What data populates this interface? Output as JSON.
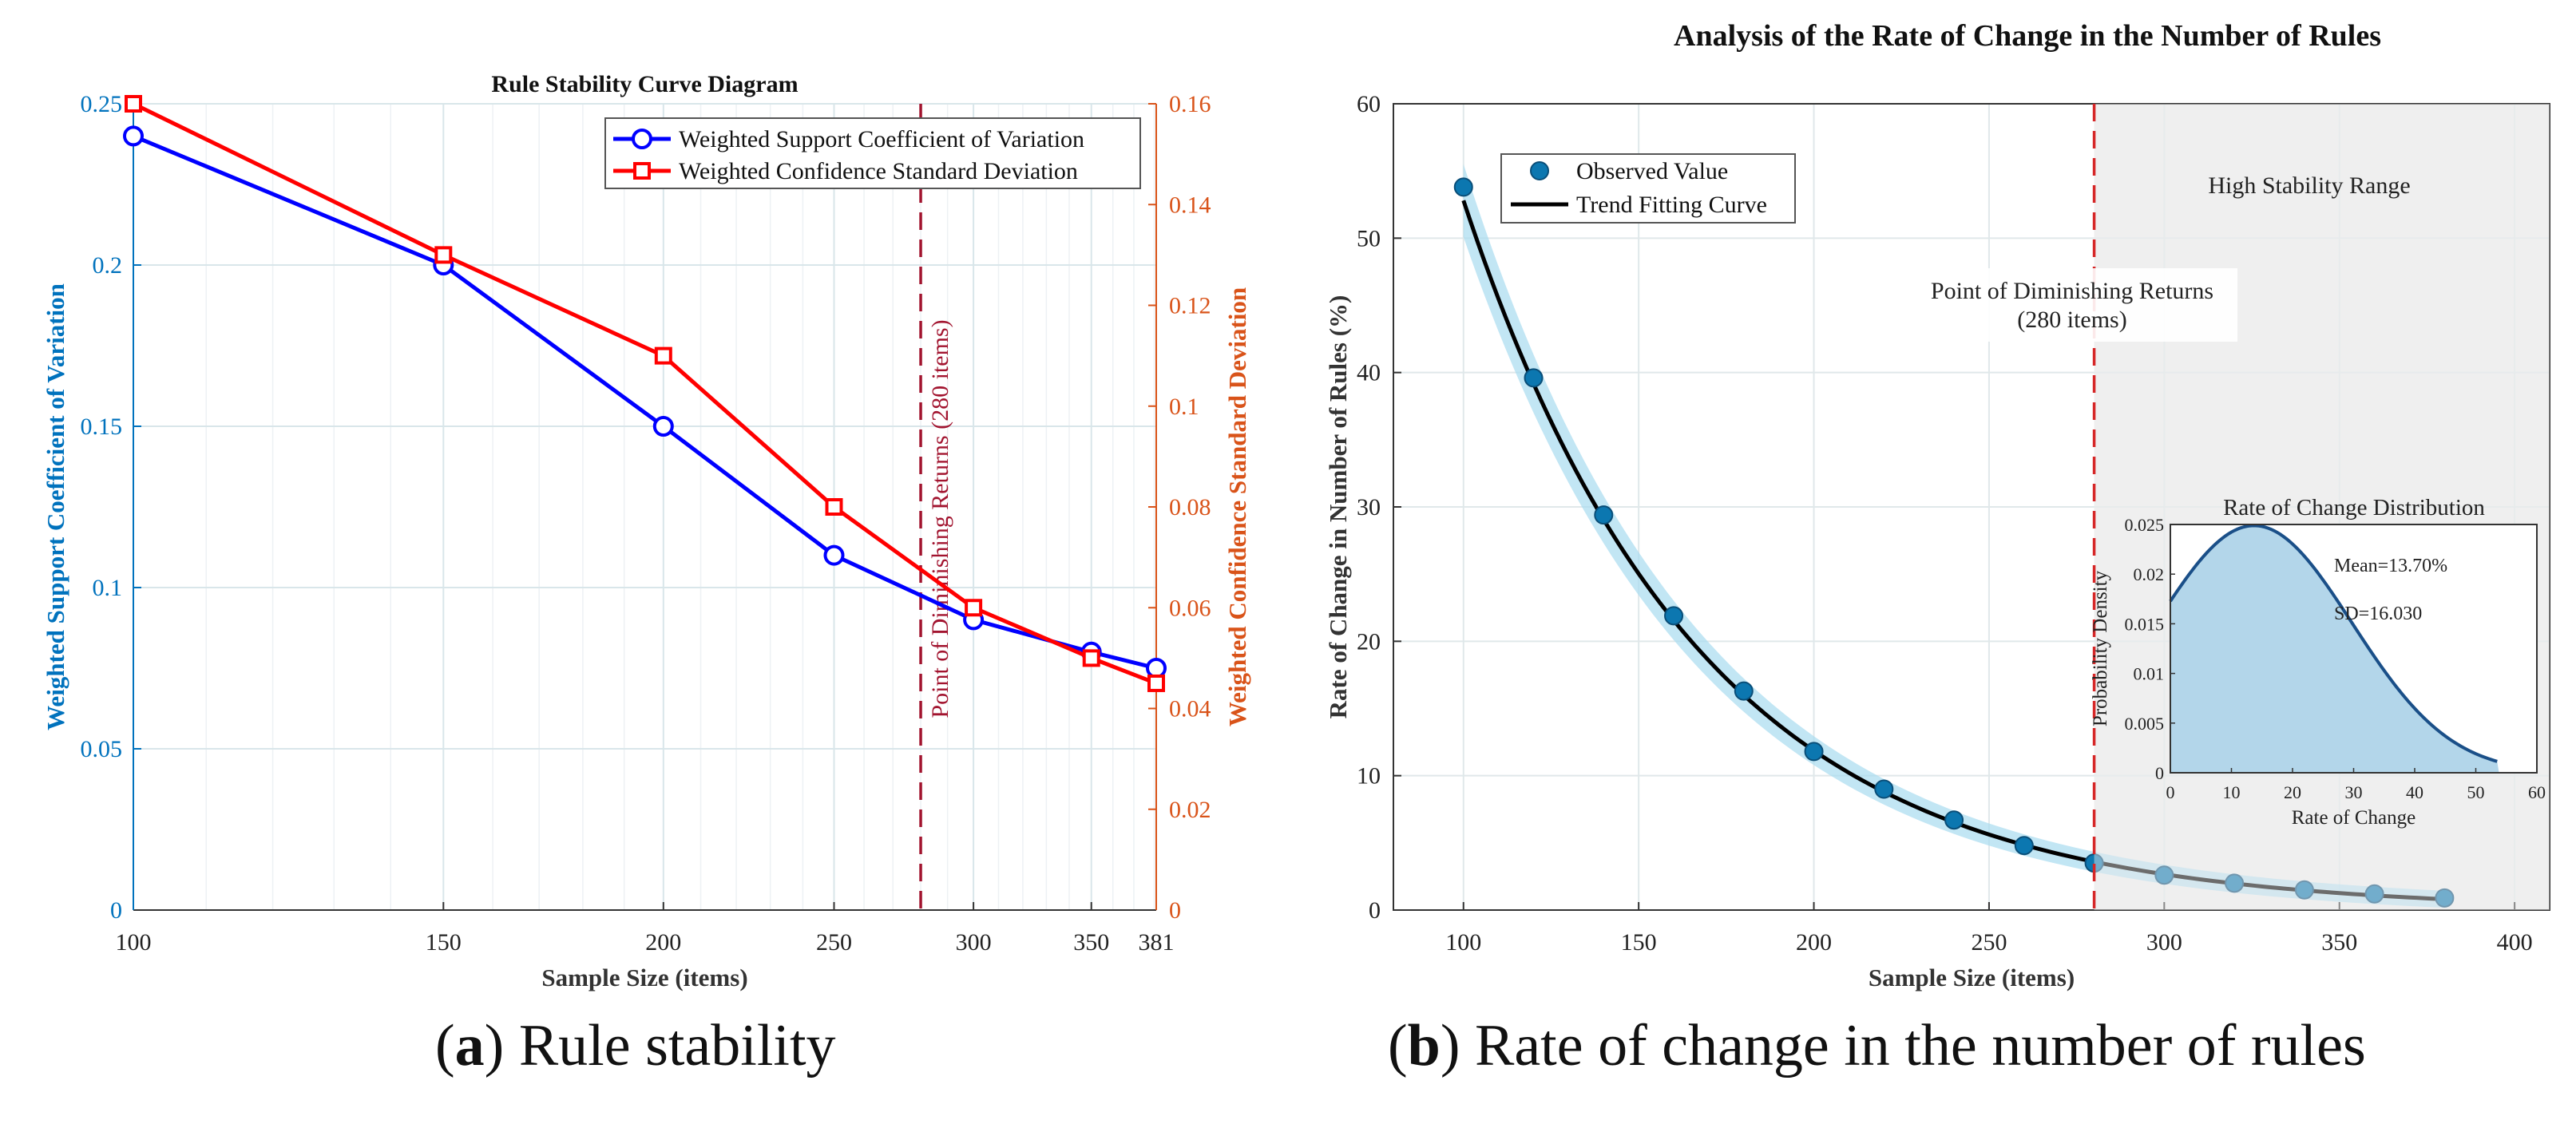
{
  "chart_data": [
    {
      "type": "line",
      "title": "Rule Stability Curve Diagram",
      "xlabel": "Sample Size (items)",
      "ylabel": "Weighted Support Coefficient of Variation",
      "y2label": "Weighted Confidence Standard Deviation",
      "x_scale": "log",
      "xlim": [
        100,
        381
      ],
      "ylim": [
        0,
        0.25
      ],
      "y2lim": [
        0,
        0.16
      ],
      "x_ticks": [
        100,
        150,
        200,
        250,
        300,
        350,
        381
      ],
      "x_tick_labels": [
        "100",
        "150",
        "200",
        "250",
        "300",
        "350",
        "381"
      ],
      "y_ticks": [
        0,
        0.05,
        0.1,
        0.15,
        0.2,
        0.25
      ],
      "y_tick_labels": [
        "0",
        "0.05",
        "0.1",
        "0.15",
        "0.2",
        "0.25"
      ],
      "y2_ticks": [
        0,
        0.02,
        0.04,
        0.06,
        0.08,
        0.1,
        0.12,
        0.14,
        0.16
      ],
      "y2_tick_labels": [
        "0",
        "0.02",
        "0.04",
        "0.06",
        "0.08",
        "0.1",
        "0.12",
        "0.14",
        "0.16"
      ],
      "series": [
        {
          "name": "Weighted Support Coefficient of Variation",
          "axis": "left",
          "marker": "circle",
          "color": "#0000ff",
          "x": [
            100,
            150,
            200,
            250,
            300,
            350,
            381
          ],
          "values": [
            0.24,
            0.2,
            0.15,
            0.11,
            0.09,
            0.08,
            0.075
          ]
        },
        {
          "name": "Weighted Confidence Standard Deviation",
          "axis": "right",
          "marker": "square",
          "color": "#ff0000",
          "x": [
            100,
            150,
            200,
            250,
            300,
            350,
            381
          ],
          "values": [
            0.16,
            0.13,
            0.11,
            0.08,
            0.06,
            0.05,
            0.045
          ]
        }
      ],
      "vline": {
        "x": 280,
        "label": "Point of Diminishing Returns (280 items)"
      },
      "legend": "top-right",
      "colors": {
        "left_axis": "#0072bd",
        "right_axis": "#d95319",
        "vline": "#a2142f"
      }
    },
    {
      "type": "scatter",
      "title": "Analysis of the Rate of Change in the Number of Rules",
      "xlabel": "Sample Size (items)",
      "ylabel": "Rate of Change in Number of Rules (%)",
      "xlim": [
        80,
        410
      ],
      "ylim": [
        0,
        60
      ],
      "x_ticks": [
        100,
        150,
        200,
        250,
        300,
        350,
        400
      ],
      "x_tick_labels": [
        "100",
        "150",
        "200",
        "250",
        "300",
        "350",
        "400"
      ],
      "y_ticks": [
        0,
        10,
        20,
        30,
        40,
        50,
        60
      ],
      "y_tick_labels": [
        "0",
        "10",
        "20",
        "30",
        "40",
        "50",
        "60"
      ],
      "series": [
        {
          "name": "Observed Value",
          "type": "scatter",
          "x": [
            100,
            120,
            140,
            160,
            180,
            200,
            220,
            240,
            260,
            280,
            300,
            320,
            340,
            360,
            380
          ],
          "values": [
            53.8,
            39.6,
            29.4,
            21.9,
            16.3,
            11.8,
            9.0,
            6.7,
            4.8,
            3.5,
            2.6,
            2.0,
            1.5,
            1.2,
            0.9
          ]
        },
        {
          "name": "Trend Fitting Curve",
          "type": "line",
          "model": "exponential",
          "a": 52.8,
          "k": 0.01493,
          "x0": 100,
          "x_end": 380
        }
      ],
      "vline": {
        "x": 280,
        "label": "Point of Diminishing Returns",
        "label2": "(280 items)"
      },
      "shaded_region": {
        "x_from": 280,
        "x_to": 410,
        "label": "High Stability Range"
      },
      "legend": "top-left",
      "inset": {
        "type": "area",
        "title": "Rate of Change Distribution",
        "xlabel": "Rate of Change",
        "ylabel": "Probability Density",
        "xlim": [
          0,
          60
        ],
        "ylim": [
          0,
          0.025
        ],
        "x_ticks": [
          0,
          10,
          20,
          30,
          40,
          50,
          60
        ],
        "x_tick_labels": [
          "0",
          "10",
          "20",
          "30",
          "40",
          "50",
          "60"
        ],
        "y_ticks": [
          0,
          0.005,
          0.01,
          0.015,
          0.02,
          0.025
        ],
        "y_tick_labels": [
          "0",
          "0.005",
          "0.01",
          "0.015",
          "0.02",
          "0.025"
        ],
        "mean": 13.7,
        "sd": 16.03,
        "x_end": 53.8,
        "annotations": [
          "Mean=13.70%",
          "SD=16.030"
        ]
      },
      "colors": {
        "points": "#0c77b0",
        "curve": "#000000",
        "band": "#a8dcef",
        "vline": "#d62728",
        "shade": "#efefef",
        "inset_fill": "#b3d6ea",
        "inset_line": "#1a4f88"
      }
    }
  ],
  "captions": {
    "a_label": "(a)",
    "a_letter": "a",
    "a_text": " Rule stability",
    "b_letter": "b",
    "b_text": " Rate of change in the number of rules"
  }
}
